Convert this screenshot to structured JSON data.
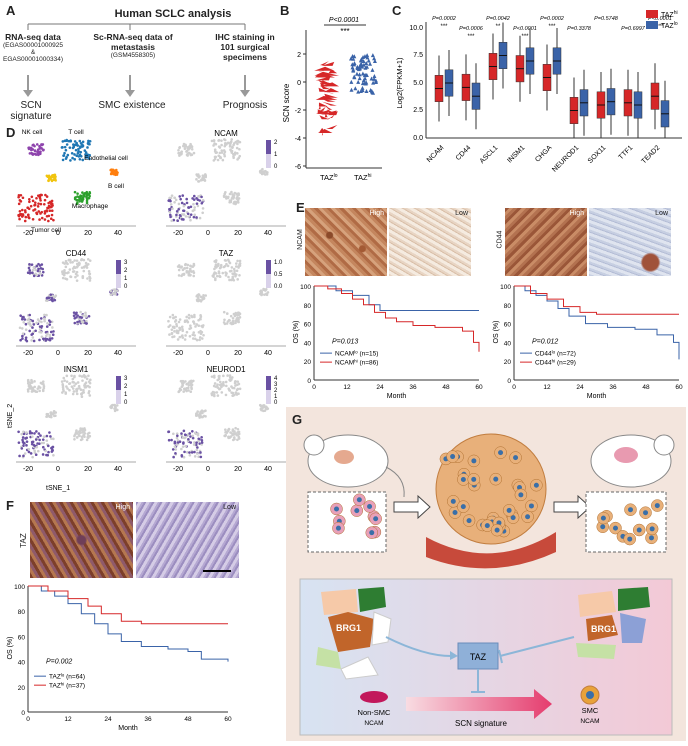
{
  "panelA": {
    "letter": "A",
    "title": "Human SCLC analysis",
    "cols": [
      {
        "head": "RNA-seq data",
        "sub1": "(EGAS00001000925 &",
        "sub2": "EGAS00001000334)",
        "result": "SCN signature"
      },
      {
        "head": "Sc-RNA-seq data of",
        "head2": "metastasis",
        "sub1": "(GSM4558305)",
        "sub2": "",
        "result": "SMC existence"
      },
      {
        "head": "IHC staining in",
        "head2": "101 surgical",
        "head3": "specimens",
        "sub1": "",
        "sub2": "",
        "result": "Prognosis"
      }
    ]
  },
  "panelB": {
    "letter": "B",
    "ylabel": "SCN score",
    "pvalue": "P<0.0001",
    "stars": "***",
    "groups": [
      "TAZ",
      "TAZ"
    ],
    "group_sup": [
      "lo",
      "hi"
    ],
    "yticks": [
      "2",
      "0",
      "-2",
      "-4",
      "-6"
    ]
  },
  "panelC": {
    "letter": "C",
    "ylabel": "Log2(FPKM+1)",
    "legend": [
      {
        "label": "TAZ",
        "sup": "hi",
        "color": "#d62728"
      },
      {
        "label": "TAZ",
        "sup": "lo",
        "color": "#3a63a8"
      }
    ],
    "genes": [
      "NCAM",
      "CD44",
      "ASCL1",
      "INSM1",
      "CHGA",
      "NEUROD1",
      "SOX11",
      "TTF1",
      "TEAD2"
    ],
    "pvalues": [
      "P=0.0002",
      "P=0.0006",
      "P=0.0042",
      "P<0.0001",
      "P=0.0002",
      "P=0.3378",
      "P=0.5748",
      "P=0.6997",
      "P<0.0001"
    ],
    "stars": [
      "***",
      "***",
      "**",
      "***",
      "***",
      "",
      "",
      "",
      "***"
    ],
    "yticks": [
      "10.0",
      "7.5",
      "5.0",
      "2.5",
      "0.0"
    ]
  },
  "panelD": {
    "letter": "D",
    "cluster_labels": [
      "NK cell",
      "T cell",
      "Endothelial cell",
      "B cell",
      "Macrophage",
      "Tumor cell"
    ],
    "maps": [
      {
        "title": "NCAM",
        "scale": [
          "2",
          "1",
          "0"
        ]
      },
      {
        "title": "CD44",
        "scale": [
          "3",
          "2",
          "1",
          "0"
        ]
      },
      {
        "title": "TAZ",
        "scale": [
          "1.0",
          "0.5",
          "0.0"
        ]
      },
      {
        "title": "INSM1",
        "scale": [
          "3",
          "2",
          "1",
          "0"
        ]
      },
      {
        "title": "NEUROD1",
        "scale": [
          "4",
          "3",
          "2",
          "1",
          "0"
        ]
      }
    ],
    "xticks": [
      "-20",
      "0",
      "20",
      "40"
    ],
    "axis1": "tSNE_1",
    "axis2": "tSNE_2"
  },
  "panelE": {
    "letter": "E",
    "left": {
      "stain": "NCAM",
      "high": "High",
      "low": "Low",
      "p": "P=0.013",
      "ylabel": "OS (%)",
      "xlabel": "Month",
      "legend": [
        {
          "label": "NCAM",
          "sup": "lo",
          "n": "(n=15)"
        },
        {
          "label": "NCAM",
          "sup": "hi",
          "n": "(n=86)"
        }
      ]
    },
    "right": {
      "stain": "CD44",
      "high": "High",
      "low": "Low",
      "p": "P=0.012",
      "ylabel": "OS (%)",
      "xlabel": "Month",
      "legend": [
        {
          "label": "CD44",
          "sup": "lo",
          "n": "(n=72)"
        },
        {
          "label": "CD44",
          "sup": "hi",
          "n": "(n=29)"
        }
      ]
    },
    "yticks": [
      "100",
      "80",
      "60",
      "40",
      "20",
      "0"
    ],
    "xticks": [
      "0",
      "12",
      "24",
      "36",
      "48",
      "60"
    ]
  },
  "panelF": {
    "letter": "F",
    "stain": "TAZ",
    "high": "High",
    "low": "Low",
    "p": "P=0.002",
    "ylabel": "OS (%)",
    "xlabel": "Month",
    "legend": [
      {
        "label": "TAZ",
        "sup": "lo",
        "n": "(n=64)"
      },
      {
        "label": "TAZ",
        "sup": "hi",
        "n": "(n=37)"
      }
    ],
    "yticks": [
      "100",
      "80",
      "60",
      "40",
      "20",
      "0"
    ],
    "xticks": [
      "0",
      "12",
      "24",
      "36",
      "48",
      "60"
    ]
  },
  "panelG": {
    "letter": "G",
    "brg1": "BRG1",
    "taz": "TAZ",
    "nonsmc": "Non-SMC",
    "nonsmc_sub": "NCAM",
    "smc": "SMC",
    "smc_sub": "NCAM",
    "signature": "SCN signature"
  },
  "colors": {
    "red": "#d62728",
    "blue": "#3a63a8",
    "purple": "#6a5acd",
    "pink_bg": "#f6e3dc"
  }
}
